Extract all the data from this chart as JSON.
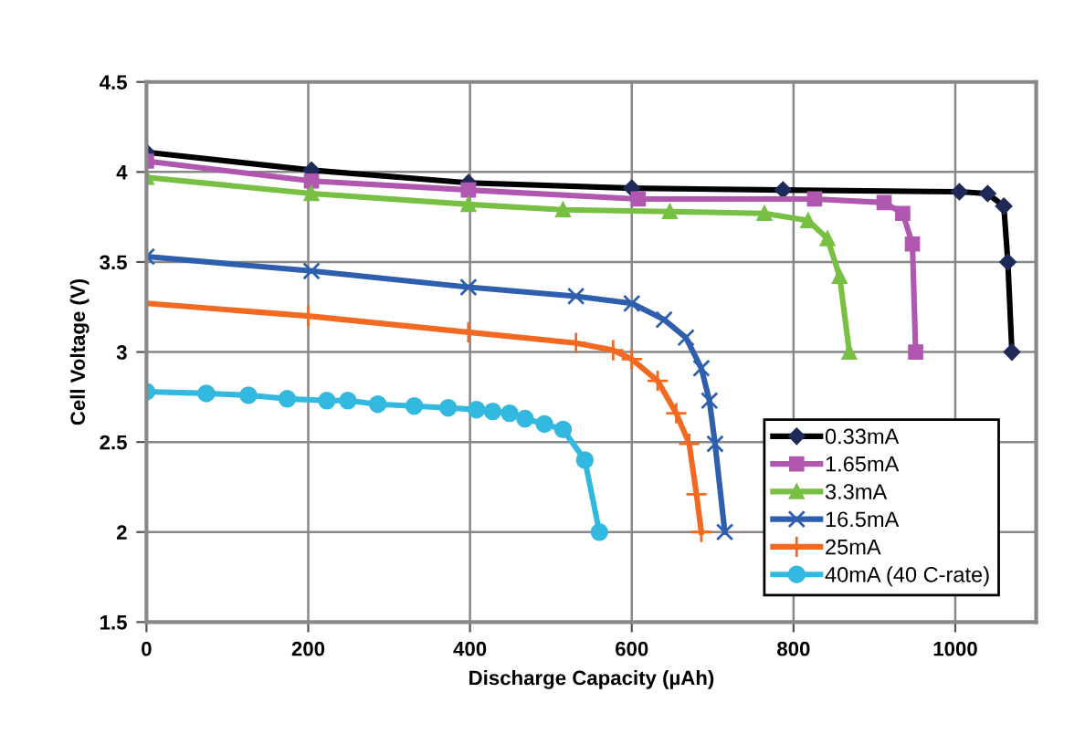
{
  "chart_data": {
    "type": "line",
    "xlabel": "Discharge Capacity (µAh)",
    "ylabel": "Cell Voltage (V)",
    "xlim": [
      0,
      1100
    ],
    "xticks": [
      0,
      200,
      400,
      600,
      800,
      1000
    ],
    "ylim": [
      1.5,
      4.5
    ],
    "yticks": [
      1.5,
      2,
      2.5,
      3,
      3.5,
      4,
      4.5
    ],
    "grid": true,
    "legend": "bottom right",
    "line_style": "solid",
    "series": [
      {
        "name": "0.33mA",
        "color": "#000000",
        "marker": "diamond",
        "x": [
          0,
          204,
          398,
          600,
          787,
          1005,
          1040,
          1060,
          1065,
          1070
        ],
        "values": [
          4.11,
          4.01,
          3.94,
          3.91,
          3.9,
          3.89,
          3.88,
          3.81,
          3.5,
          3.0
        ]
      },
      {
        "name": "1.65mA",
        "color": "#b057b0",
        "marker": "square",
        "x": [
          0,
          204,
          398,
          608,
          826,
          912,
          935,
          947,
          951
        ],
        "values": [
          4.06,
          3.95,
          3.9,
          3.85,
          3.85,
          3.83,
          3.77,
          3.6,
          3.0
        ]
      },
      {
        "name": "3.3mA",
        "color": "#77c043",
        "marker": "triangle",
        "x": [
          0,
          204,
          398,
          515,
          647,
          764,
          818,
          842,
          857,
          869
        ],
        "values": [
          3.97,
          3.88,
          3.82,
          3.79,
          3.78,
          3.77,
          3.73,
          3.63,
          3.42,
          3.0
        ]
      },
      {
        "name": "16.5mA",
        "color": "#2e5fae",
        "marker": "cross",
        "x": [
          0,
          204,
          398,
          531,
          600,
          640,
          667,
          686,
          696,
          703,
          715
        ],
        "values": [
          3.53,
          3.45,
          3.36,
          3.31,
          3.27,
          3.18,
          3.08,
          2.91,
          2.73,
          2.49,
          2.0
        ]
      },
      {
        "name": "25mA",
        "color": "#f26a21",
        "marker": "plus",
        "x": [
          0,
          200,
          398,
          531,
          577,
          600,
          632,
          655,
          671,
          680,
          686
        ],
        "values": [
          3.27,
          3.2,
          3.11,
          3.05,
          3.01,
          2.96,
          2.84,
          2.66,
          2.49,
          2.21,
          2.0
        ]
      },
      {
        "name": "40mA (40 C-rate)",
        "color": "#33b8e0",
        "marker": "circle",
        "x": [
          0,
          74,
          126,
          174,
          223,
          249,
          286,
          331,
          373,
          408,
          428,
          449,
          468,
          492,
          515,
          542,
          560
        ],
        "values": [
          2.78,
          2.77,
          2.76,
          2.74,
          2.73,
          2.73,
          2.71,
          2.7,
          2.69,
          2.68,
          2.67,
          2.66,
          2.63,
          2.6,
          2.57,
          2.4,
          2.0
        ]
      }
    ]
  }
}
